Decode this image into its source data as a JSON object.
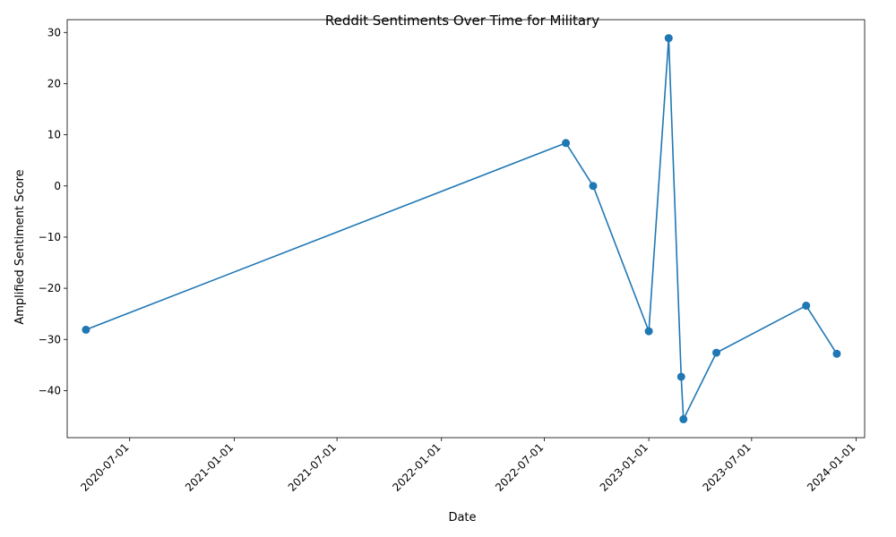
{
  "chart_data": {
    "type": "line",
    "title": "Reddit Sentiments Over Time for Military",
    "xlabel": "Date",
    "ylabel": "Amplified Sentiment Score",
    "x_ticks": [
      "2020-07-01",
      "2021-01-01",
      "2021-07-01",
      "2022-01-01",
      "2022-07-01",
      "2023-01-01",
      "2023-07-01",
      "2024-01-01"
    ],
    "y_ticks": [
      -40,
      -30,
      -20,
      -10,
      0,
      10,
      20,
      30
    ],
    "xlim": [
      "2020-03-13",
      "2024-01-16"
    ],
    "ylim": [
      -49.2,
      32.5
    ],
    "grid": false,
    "series": [
      {
        "color": "#1f77b4",
        "marker": "circle",
        "points": [
          {
            "x": "2020-04-15",
            "y": -28.1
          },
          {
            "x": "2022-08-08",
            "y": 8.4
          },
          {
            "x": "2022-09-25",
            "y": 0.0
          },
          {
            "x": "2023-01-01",
            "y": -28.4
          },
          {
            "x": "2023-02-05",
            "y": 28.9
          },
          {
            "x": "2023-02-27",
            "y": -37.3
          },
          {
            "x": "2023-03-03",
            "y": -45.6
          },
          {
            "x": "2023-04-30",
            "y": -32.6
          },
          {
            "x": "2023-10-05",
            "y": -23.4
          },
          {
            "x": "2023-11-28",
            "y": -32.8
          }
        ]
      }
    ]
  }
}
